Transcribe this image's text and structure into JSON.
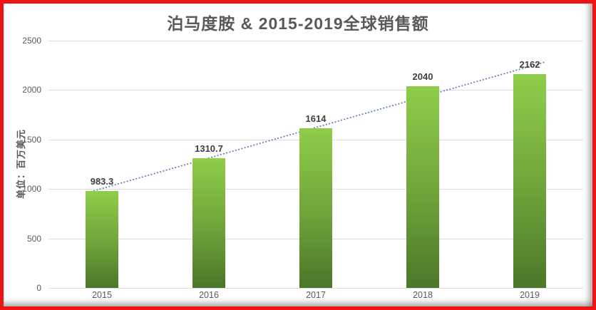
{
  "frame": {
    "border_color": "#ee1315"
  },
  "chart": {
    "title": "泊马度胺 & 2015-2019全球销售额",
    "y_axis_title": "单位：百万美元"
  },
  "chart_data": {
    "type": "bar",
    "categories": [
      "2015",
      "2016",
      "2017",
      "2018",
      "2019"
    ],
    "values": [
      983.3,
      1310.7,
      1614,
      2040,
      2162
    ],
    "data_labels": [
      "983.3",
      "1310.7",
      "1614",
      "2040",
      "2162"
    ],
    "title": "泊马度胺 & 2015-2019全球销售额",
    "xlabel": "",
    "ylabel": "单位：百万美元",
    "ylim": [
      0,
      2500
    ],
    "yticks": [
      0,
      500,
      1000,
      1500,
      2000,
      2500
    ],
    "grid": true,
    "legend": false,
    "trendline": {
      "type": "linear",
      "style": "dotted",
      "color": "#5b7fb0"
    },
    "bar_gradient": [
      "#8fcd4b",
      "#4c762a"
    ],
    "colors": {
      "grid": "#dddddd",
      "tick_text": "#595959",
      "title_text": "#595959",
      "value_text": "#3f3f3f"
    }
  }
}
